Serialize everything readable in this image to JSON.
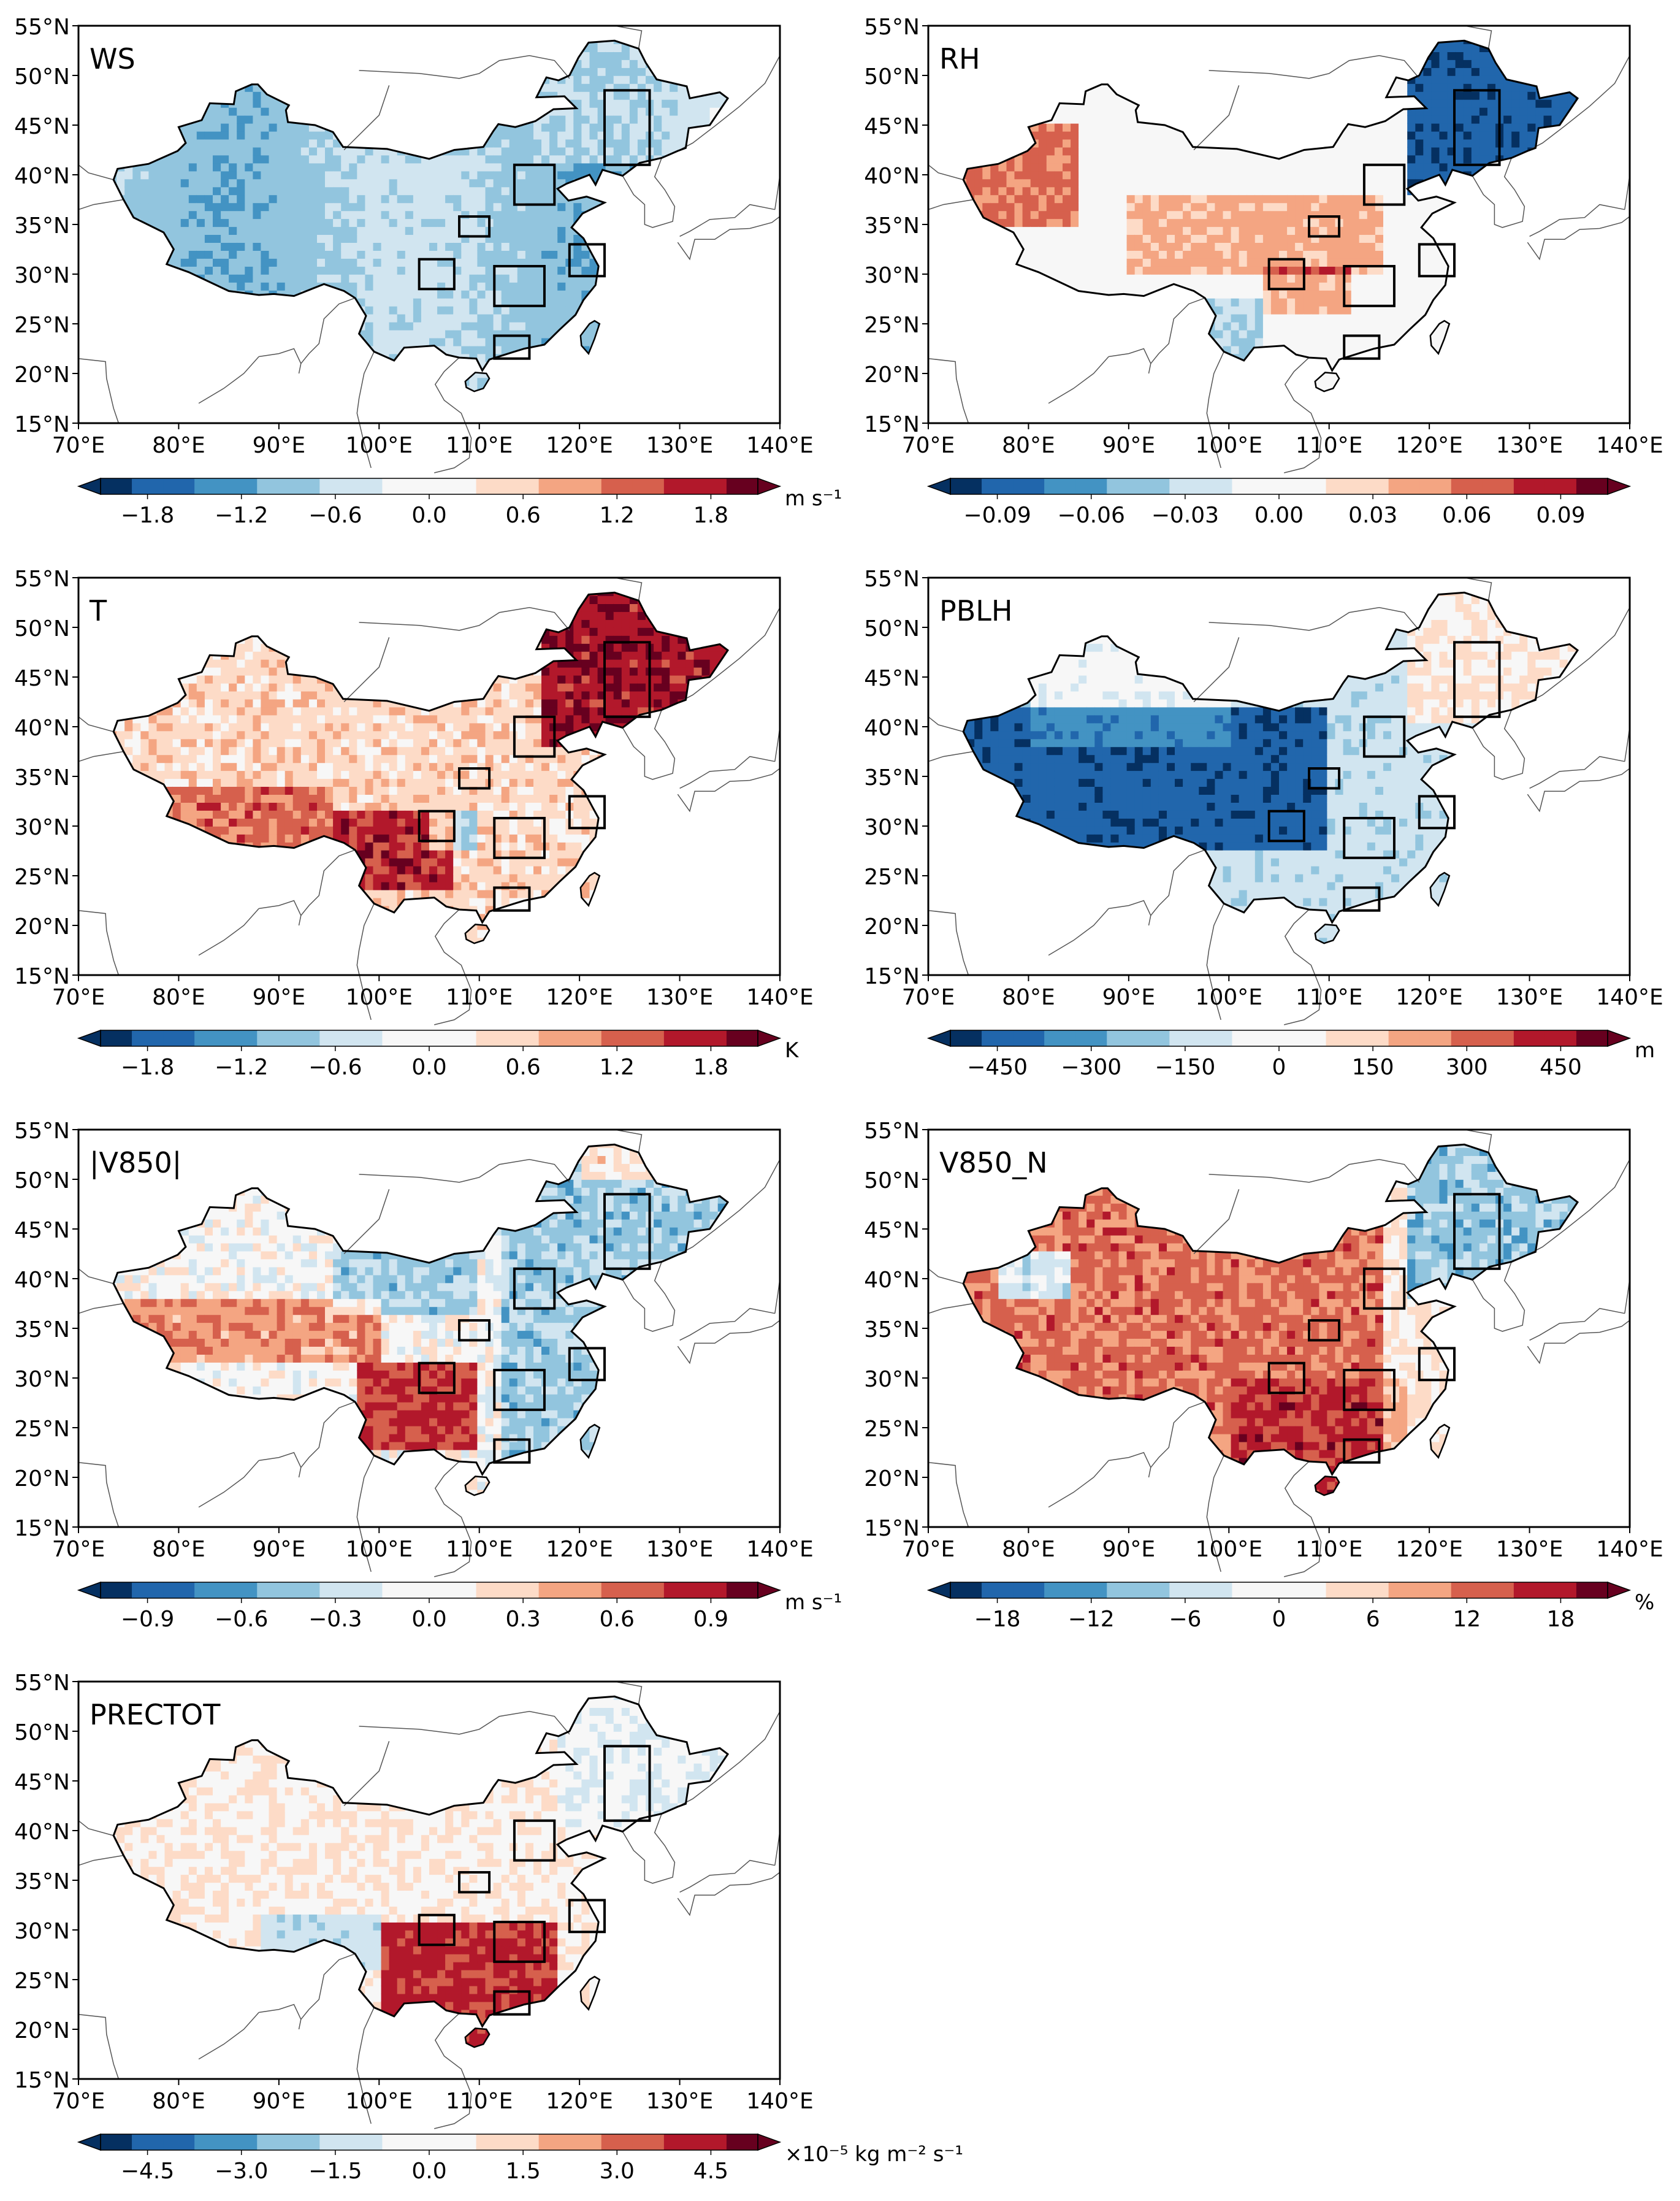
{
  "panels": [
    {
      "key": "ws",
      "label": "WS",
      "unit": "m s⁻¹",
      "ticks": [
        "−1.8",
        "−1.2",
        "−0.6",
        "0.0",
        "0.6",
        "1.2",
        "1.8"
      ],
      "pattern": "ws"
    },
    {
      "key": "rh",
      "label": "RH",
      "unit": "",
      "ticks": [
        "−0.09",
        "−0.06",
        "−0.03",
        "0.00",
        "0.03",
        "0.06",
        "0.09"
      ],
      "pattern": "rh"
    },
    {
      "key": "t",
      "label": "T",
      "unit": "K",
      "ticks": [
        "−1.8",
        "−1.2",
        "−0.6",
        "0.0",
        "0.6",
        "1.2",
        "1.8"
      ],
      "pattern": "t"
    },
    {
      "key": "pblh",
      "label": "PBLH",
      "unit": "m",
      "ticks": [
        "−450",
        "−300",
        "−150",
        "0",
        "150",
        "300",
        "450"
      ],
      "pattern": "pblh"
    },
    {
      "key": "v850",
      "label": "|V850|",
      "unit": "m s⁻¹",
      "ticks": [
        "−0.9",
        "−0.6",
        "−0.3",
        "0.0",
        "0.3",
        "0.6",
        "0.9"
      ],
      "pattern": "v850"
    },
    {
      "key": "v850n",
      "label": "V850_N",
      "unit": "%",
      "ticks": [
        "−18",
        "−12",
        "−6",
        "0",
        "6",
        "12",
        "18"
      ],
      "pattern": "v850n"
    },
    {
      "key": "prectot",
      "label": "PRECTOT",
      "unit": "×10⁻⁵ kg m⁻² s⁻¹",
      "ticks": [
        "−4.5",
        "−3.0",
        "−1.5",
        "0.0",
        "1.5",
        "3.0",
        "4.5"
      ],
      "pattern": "prectot"
    }
  ],
  "axes": {
    "lat_labels": [
      "55°N",
      "50°N",
      "45°N",
      "40°N",
      "35°N",
      "30°N",
      "25°N",
      "20°N",
      "15°N"
    ],
    "lon_labels": [
      "70°E",
      "80°E",
      "90°E",
      "100°E",
      "110°E",
      "120°E",
      "130°E",
      "140°E"
    ],
    "lat_range": [
      15,
      55
    ],
    "lon_range": [
      70,
      140
    ]
  },
  "colormap": [
    "#053061",
    "#2166ac",
    "#4393c3",
    "#92c5de",
    "#d1e5f0",
    "#f7f7f7",
    "#fddbc7",
    "#f4a582",
    "#d6604d",
    "#b2182b",
    "#67001f"
  ]
}
